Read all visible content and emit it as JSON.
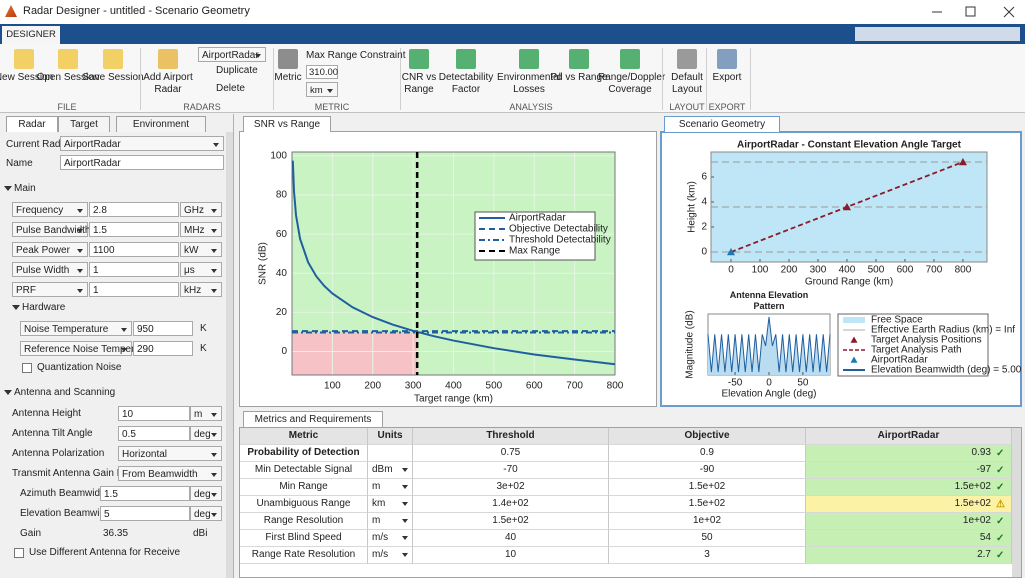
{
  "window": {
    "title": "Radar Designer - untitled - Scenario Geometry"
  },
  "toolstrip": {
    "tab": "DESIGNER",
    "groups": [
      {
        "label": "FILE",
        "buttons": [
          "New Session",
          "Open Session",
          "Save Session"
        ]
      },
      {
        "label": "RADARS",
        "buttons": [
          "Add Airport Radar"
        ],
        "radar_select": "AirportRadar",
        "actions": [
          "Duplicate",
          "Delete"
        ]
      },
      {
        "label": "METRIC",
        "buttons": [
          "Metric"
        ],
        "constraint_label": "Max Range Constraint",
        "constraint_value": "310.00",
        "constraint_unit": "km"
      },
      {
        "label": "ANALYSIS",
        "buttons": [
          "CNR vs Range",
          "Detectability Factor",
          "Environmental Losses",
          "Pd vs Range",
          "Range/Doppler Coverage"
        ]
      },
      {
        "label": "LAYOUT",
        "buttons": [
          "Default Layout"
        ]
      },
      {
        "label": "EXPORT",
        "buttons": [
          "Export"
        ]
      }
    ]
  },
  "left_panel": {
    "tabs": [
      "Radar",
      "Target",
      "Environment"
    ],
    "current_radar_label": "Current Radar",
    "current_radar": "AirportRadar",
    "name_label": "Name",
    "name": "AirportRadar",
    "sections": [
      {
        "title": "Main",
        "fields": [
          {
            "label": "Frequency",
            "value": "2.8",
            "unit": "GHz"
          },
          {
            "label": "Pulse Bandwidth",
            "value": "1.5",
            "unit": "MHz"
          },
          {
            "label": "Peak Power",
            "value": "1100",
            "unit": "kW"
          },
          {
            "label": "Pulse Width",
            "value": "1",
            "unit": "μs"
          },
          {
            "label": "PRF",
            "value": "1",
            "unit": "kHz"
          }
        ]
      },
      {
        "title": "Hardware",
        "fields": [
          {
            "label": "Noise Temperature",
            "value": "950",
            "unit": "K"
          },
          {
            "label": "Reference Noise Temperature",
            "value": "290",
            "unit": "K"
          }
        ],
        "checkbox": "Quantization Noise"
      },
      {
        "title": "Antenna and Scanning",
        "fields": [
          {
            "label": "Antenna Height",
            "value": "10",
            "unit": "m"
          },
          {
            "label": "Antenna Tilt Angle",
            "value": "0.5",
            "unit": "deg"
          },
          {
            "label": "Antenna Polarization",
            "value": "Horizontal"
          },
          {
            "label": "Transmit Antenna Gain Input",
            "value": "From Beamwidth"
          },
          {
            "label": "Azimuth Beamwidth",
            "value": "1.5",
            "unit": "deg"
          },
          {
            "label": "Elevation Beamwidth",
            "value": "5",
            "unit": "deg"
          },
          {
            "label": "Gain",
            "value": "36.35",
            "unit": "dBi"
          }
        ],
        "checkbox": "Use Different Antenna for Receive"
      }
    ]
  },
  "panels": {
    "snr_tab": "SNR vs Range",
    "geometry_tab": "Scenario Geometry",
    "metrics_tab": "Metrics and Requirements"
  },
  "chart_data": [
    {
      "type": "line",
      "x_label": "Target range (km)",
      "y_label": "SNR (dB)",
      "x": [
        2,
        5,
        10,
        20,
        40,
        60,
        80,
        100,
        150,
        200,
        250,
        300,
        350,
        400,
        500,
        600,
        700,
        800
      ],
      "series": [
        {
          "name": "AirportRadar",
          "color": "#1f5f9f",
          "values": [
            97.6,
            81.7,
            69.6,
            57.6,
            45.6,
            38.5,
            33.5,
            29.7,
            22.6,
            17.6,
            13.7,
            10.6,
            7.9,
            5.6,
            1.7,
            -1.5,
            -4.1,
            -6.5
          ]
        }
      ],
      "hlines": [
        {
          "name": "Objective Detectability",
          "value": 10.4,
          "color": "#1f5f9f",
          "style": "dashed"
        },
        {
          "name": "Threshold Detectability",
          "value": 9.7,
          "color": "#1f5f9f",
          "style": "dashdot"
        }
      ],
      "vlines": [
        {
          "name": "Max Range",
          "value": 310,
          "color": "#000000",
          "style": "dashed"
        }
      ],
      "xlim": [
        0,
        800
      ],
      "xticks": [
        100,
        200,
        300,
        400,
        500,
        600,
        700,
        800
      ],
      "ylim": [
        -12,
        102
      ],
      "yticks": [
        0,
        20,
        40,
        60,
        80,
        100
      ],
      "grid": true
    },
    {
      "type": "scatter",
      "title": "AirportRadar - Constant Elevation Angle Target",
      "x_label": "Ground Range (km)",
      "y_label": "Height (km)",
      "series": [
        {
          "name": "Free Space",
          "color": "#bfe6f6"
        },
        {
          "name": "Effective Earth Radius (km) = Inf",
          "color": "#c8c8c8"
        },
        {
          "name": "Target Analysis Positions",
          "color": "#8b1a2a",
          "x": [
            400,
            800
          ],
          "values": [
            3.6,
            7.2
          ]
        },
        {
          "name": "Target Analysis Path",
          "color": "#8b1a2a"
        },
        {
          "name": "AirportRadar",
          "color": "#1f77b4",
          "x": [
            0
          ],
          "values": [
            0
          ]
        },
        {
          "name": "Elevation Beamwidth (deg) = 5.00",
          "color": "#1f5f9f"
        }
      ],
      "xlim": [
        -69,
        883
      ],
      "xticks": [
        0,
        100,
        200,
        300,
        400,
        500,
        600,
        700,
        800
      ],
      "ylim": [
        -0.8,
        8
      ],
      "yticks": [
        0,
        2,
        4,
        6
      ]
    },
    {
      "type": "line",
      "title": "Antenna Elevation Pattern",
      "x_label": "Elevation Angle (deg)",
      "y_label": "Magnitude (dB)",
      "x": [
        -90,
        -85,
        -80,
        -75,
        -70,
        -65,
        -60,
        -55,
        -50,
        -45,
        -40,
        -35,
        -30,
        -25,
        -20,
        -15,
        -10,
        -5,
        0,
        5,
        10,
        15,
        20,
        25,
        30,
        35,
        40,
        45,
        50,
        55,
        60,
        65,
        70,
        75,
        80,
        85,
        90
      ],
      "values": [
        -12,
        -38,
        -12,
        -38,
        -12,
        -38,
        -12,
        -38,
        -12,
        -38,
        -12,
        -38,
        -12,
        -38,
        -12,
        -38,
        -12,
        -20,
        0,
        -20,
        -12,
        -38,
        -12,
        -38,
        -12,
        -38,
        -12,
        -38,
        -12,
        -38,
        -12,
        -38,
        -12,
        -38,
        -12,
        -38,
        -12
      ],
      "color": "#1f5f9f",
      "xlim": [
        -90,
        90
      ],
      "xticks": [
        -50,
        0,
        50
      ],
      "ylim": [
        -40,
        2
      ]
    }
  ],
  "table": {
    "headers": [
      "Metric",
      "Units",
      "Threshold",
      "Objective",
      "AirportRadar"
    ],
    "rows": [
      {
        "cells": [
          "Probability of Detection",
          "",
          "0.75",
          "0.9",
          "0.93"
        ],
        "icon": "✓",
        "color": "#c6efb3"
      },
      {
        "cells": [
          "Min Detectable Signal",
          "dBm",
          "-70",
          "-90",
          "-97"
        ],
        "icon": "✓",
        "color": "#c6efb3"
      },
      {
        "cells": [
          "Min Range",
          "m",
          "3e+02",
          "1.5e+02",
          "1.5e+02"
        ],
        "icon": "✓",
        "color": "#c6efb3"
      },
      {
        "cells": [
          "Unambiguous Range",
          "km",
          "1.4e+02",
          "1.5e+02",
          "1.5e+02"
        ],
        "icon": "⚠",
        "color": "#fbf2a6"
      },
      {
        "cells": [
          "Range Resolution",
          "m",
          "1.5e+02",
          "1e+02",
          "1e+02"
        ],
        "icon": "✓",
        "color": "#c6efb3"
      },
      {
        "cells": [
          "First Blind Speed",
          "m/s",
          "40",
          "50",
          "54"
        ],
        "icon": "✓",
        "color": "#c6efb3"
      },
      {
        "cells": [
          "Range Rate Resolution",
          "m/s",
          "10",
          "3",
          "2.7"
        ],
        "icon": "✓",
        "color": "#c6efb3"
      }
    ]
  }
}
